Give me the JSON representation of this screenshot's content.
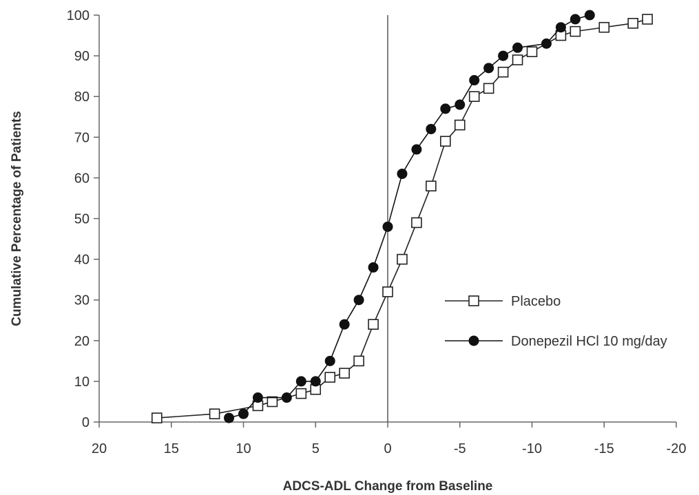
{
  "chart_data": {
    "type": "line",
    "title": "",
    "xlabel": "ADCS-ADL Change from Baseline",
    "ylabel": "Cumulative Percentage of Patients",
    "xlim": [
      20,
      -20
    ],
    "ylim": [
      0,
      100
    ],
    "x_ticks": [
      20,
      15,
      10,
      5,
      0,
      -5,
      -10,
      -15,
      -20
    ],
    "x_tick_labels": [
      "20",
      "15",
      "10",
      "5",
      "0",
      "-5",
      "-10",
      "-15",
      "-20"
    ],
    "y_ticks": [
      0,
      10,
      20,
      30,
      40,
      50,
      60,
      70,
      80,
      90,
      100
    ],
    "y_tick_labels": [
      "0",
      "10",
      "20",
      "30",
      "40",
      "50",
      "60",
      "70",
      "80",
      "90",
      "100"
    ],
    "reference_line_x": 0,
    "grid": false,
    "legend_position": "right",
    "series": [
      {
        "name": "Placebo",
        "marker": "open-square",
        "color": "#222222",
        "x": [
          16,
          12,
          9,
          8,
          6,
          5,
          4,
          3,
          2,
          1,
          0,
          -1,
          -2,
          -3,
          -4,
          -5,
          -6,
          -7,
          -8,
          -9,
          -10,
          -12,
          -13,
          -15,
          -17,
          -18
        ],
        "y": [
          1,
          2,
          4,
          5,
          7,
          8,
          11,
          12,
          15,
          24,
          32,
          40,
          49,
          58,
          69,
          73,
          80,
          82,
          86,
          89,
          91,
          95,
          96,
          97,
          98,
          99
        ]
      },
      {
        "name": "Donepezil HCl 10 mg/day",
        "marker": "filled-circle",
        "color": "#111111",
        "x": [
          11,
          10,
          9,
          7,
          6,
          5,
          4,
          3,
          2,
          1,
          0,
          -1,
          -2,
          -3,
          -4,
          -5,
          -6,
          -7,
          -8,
          -9,
          -11,
          -12,
          -13,
          -14
        ],
        "y": [
          1,
          2,
          6,
          6,
          10,
          10,
          15,
          24,
          30,
          38,
          48,
          61,
          67,
          72,
          77,
          78,
          84,
          87,
          90,
          92,
          93,
          97,
          99,
          100
        ]
      }
    ]
  }
}
